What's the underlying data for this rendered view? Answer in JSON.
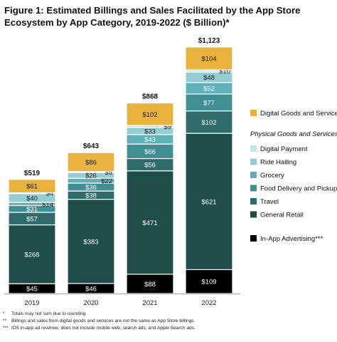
{
  "chart_data": {
    "type": "stacked-bar",
    "title": "Figure 1: Estimated Billings and Sales Facilitated by the App Store Ecosystem by App Category, 2019-2022 ($ Billion)*",
    "categories": [
      "2019",
      "2020",
      "2021",
      "2022"
    ],
    "totals": [
      "$519",
      "$643",
      "$868",
      "$1,123"
    ],
    "series": [
      {
        "name": "In-App Advertising***",
        "color": "#000000",
        "label_color": "#ffffff",
        "values": [
          45,
          46,
          88,
          109
        ],
        "labels": [
          "$45",
          "$46",
          "$88",
          "$109"
        ]
      },
      {
        "name": "General Retail",
        "color": "#1f4d4a",
        "label_color": "#ffffff",
        "values": [
          268,
          383,
          471,
          621
        ],
        "labels": [
          "$268",
          "$383",
          "$471",
          "$621"
        ]
      },
      {
        "name": "Travel",
        "color": "#2f6b6b",
        "label_color": "#ffffff",
        "values": [
          57,
          38,
          56,
          102
        ],
        "labels": [
          "$57",
          "$38",
          "$56",
          "$102"
        ]
      },
      {
        "name": "Food Delivery and Pickup",
        "color": "#3f8f93",
        "label_color": "#ffffff",
        "values": [
          31,
          36,
          66,
          77
        ],
        "labels": [
          "$31",
          "$36",
          "$66",
          "$77"
        ]
      },
      {
        "name": "Grocery",
        "color": "#5fb0b8",
        "label_color": "#ffffff",
        "values": [
          14,
          22,
          43,
          52
        ],
        "labels": [
          "$14",
          "$22",
          "$43",
          "$52"
        ],
        "side": [
          true,
          true,
          false,
          false
        ]
      },
      {
        "name": "Ride Hailing",
        "color": "#94ced4",
        "label_color": "#1a1a1a",
        "values": [
          40,
          26,
          33,
          48
        ],
        "labels": [
          "$40",
          "$26",
          "$33",
          "$48"
        ]
      },
      {
        "name": "Digital Payment",
        "color": "#c4e4e7",
        "label_color": "#1a1a1a",
        "values": [
          4,
          5,
          9,
          10
        ],
        "labels": [
          "$4",
          "$5",
          "$9",
          "$10"
        ],
        "side": [
          true,
          true,
          true,
          true
        ]
      },
      {
        "name": "Digital Goods and Services**",
        "color": "#e8b23d",
        "label_color": "#1a1a1a",
        "values": [
          61,
          86,
          102,
          104
        ],
        "labels": [
          "$61",
          "$86",
          "$102",
          "$104"
        ]
      }
    ],
    "legend_heading": "Physical Goods and Services",
    "ylim": [
      0,
      1123
    ],
    "grid": false,
    "legend_position": "right"
  },
  "footnotes": [
    {
      "marker": "*",
      "text": "Totals may not sum due to rounding."
    },
    {
      "marker": "**",
      "text": "Billings and sales from digital goods and services are not the same as App Store billings."
    },
    {
      "marker": "***",
      "text": "iOS in-app ad revenue; does not include mobile web, search ads, and Apple Search ads."
    }
  ]
}
